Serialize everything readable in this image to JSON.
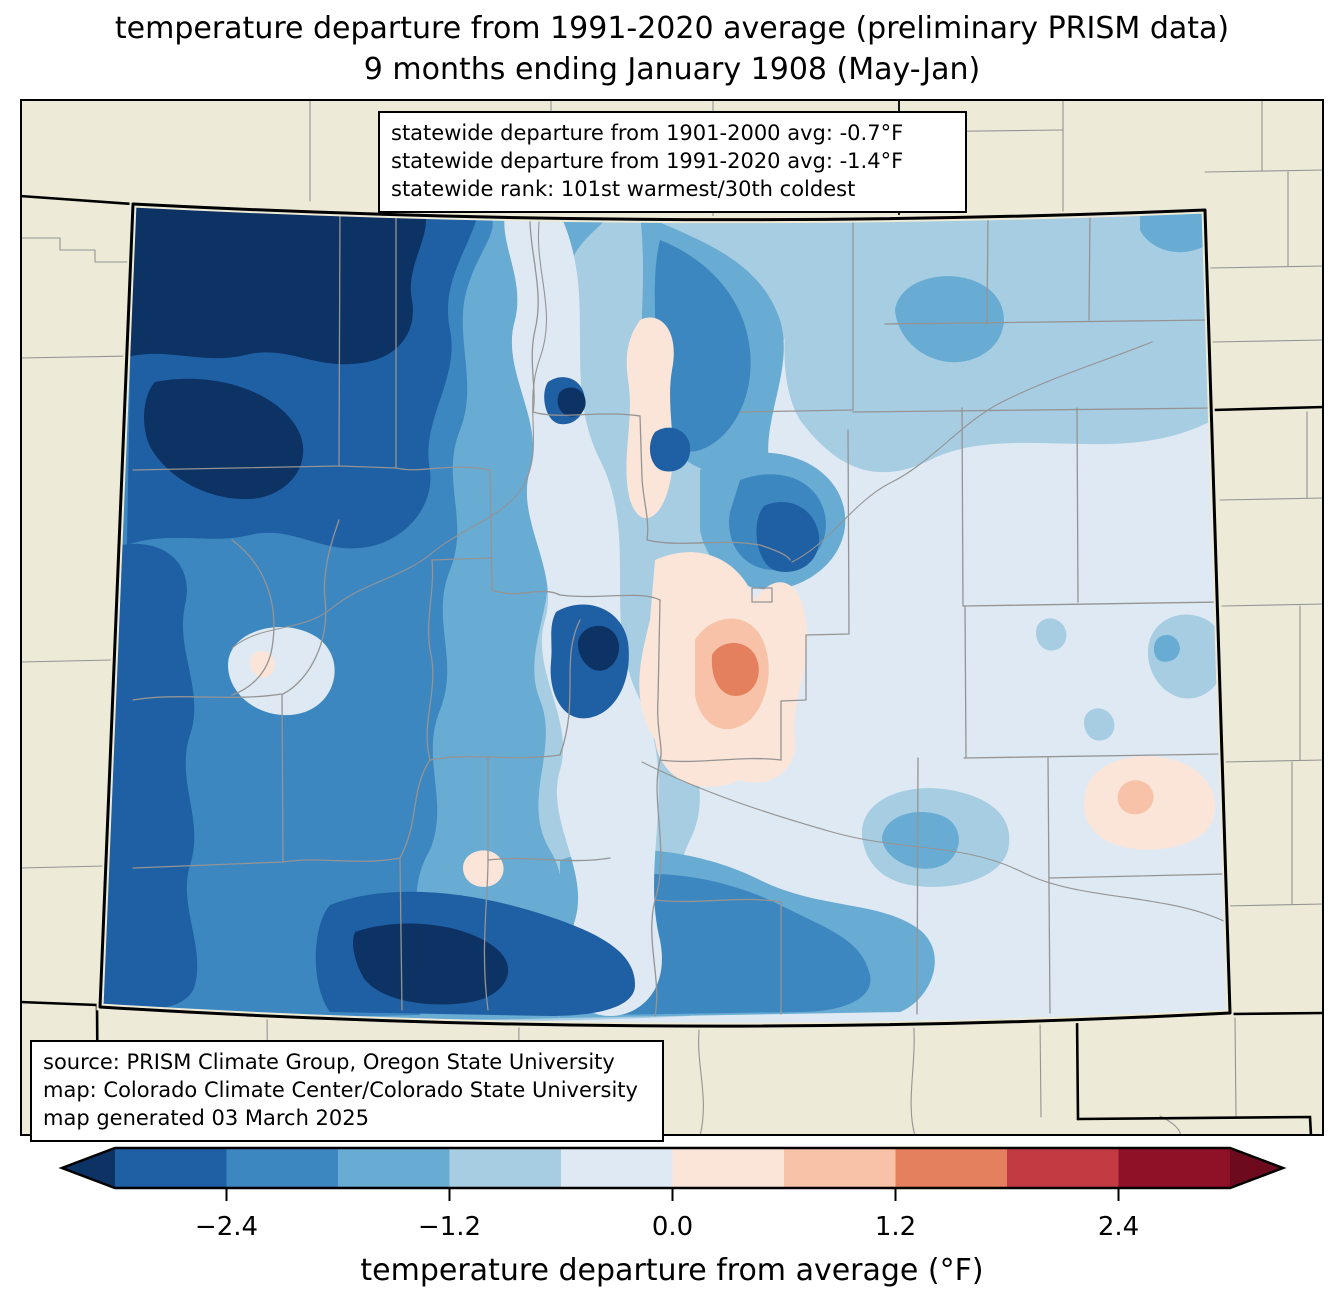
{
  "title": {
    "line1": "temperature departure from 1991-2020 average (preliminary PRISM data)",
    "line2": "9 months ending January 1908 (May-Jan)"
  },
  "stats_box": {
    "line1": "statewide departure from 1901-2000 avg: -0.7°F",
    "line2": "statewide departure from 1991-2020 avg: -1.4°F",
    "line3": "statewide rank: 101st warmest/30th coldest"
  },
  "source_box": {
    "line1": "source: PRISM Climate Group, Oregon State University",
    "line2": "map: Colorado Climate Center/Colorado State University",
    "line3": "map generated 03 March 2025"
  },
  "colorbar": {
    "label": "temperature departure from average (°F)",
    "range": [
      -3.0,
      3.0
    ],
    "step": 0.6,
    "ticks": [
      {
        "value": -2.4,
        "label": "−2.4"
      },
      {
        "value": -1.2,
        "label": "−1.2"
      },
      {
        "value": 0.0,
        "label": "0.0"
      },
      {
        "value": 1.2,
        "label": "1.2"
      },
      {
        "value": 2.4,
        "label": "2.4"
      }
    ],
    "segment_colors": [
      "#1f5fa3",
      "#3d87c0",
      "#68abd3",
      "#a7cde2",
      "#dfe9f3",
      "#fbe5d8",
      "#f7c2a7",
      "#e5805f",
      "#c23b42",
      "#8f1127"
    ],
    "under_color": "#0d3264",
    "over_color": "#6d0a1d"
  },
  "map": {
    "region": "Colorado",
    "colors": {
      "background": "#edead8",
      "county_line": "#949494",
      "state_border": "#000000"
    }
  },
  "chart_data": {
    "type": "choropleth_map",
    "region": "Colorado with surrounding state counties",
    "variable": "temperature departure from 1991-2020 average",
    "units": "°F",
    "period": "9 months ending January 1908 (May-Jan)",
    "statewide_departure_from_1901_2000_avg_F": -0.7,
    "statewide_departure_from_1991_2020_avg_F": -1.4,
    "statewide_rank": "101st warmest/30th coldest",
    "colorbar_range_F": [
      -3.0,
      3.0
    ],
    "colorbar_step_F": 0.6,
    "pattern_summary": "coldest anomalies (below -3.0°F) over northwest, west and south-central Colorado; weak warm anomalies (up to +1.8°F) in a small central-east pocket and far southeast; mild cold anomalies (0 to -1.2°F) over the eastern plains"
  }
}
